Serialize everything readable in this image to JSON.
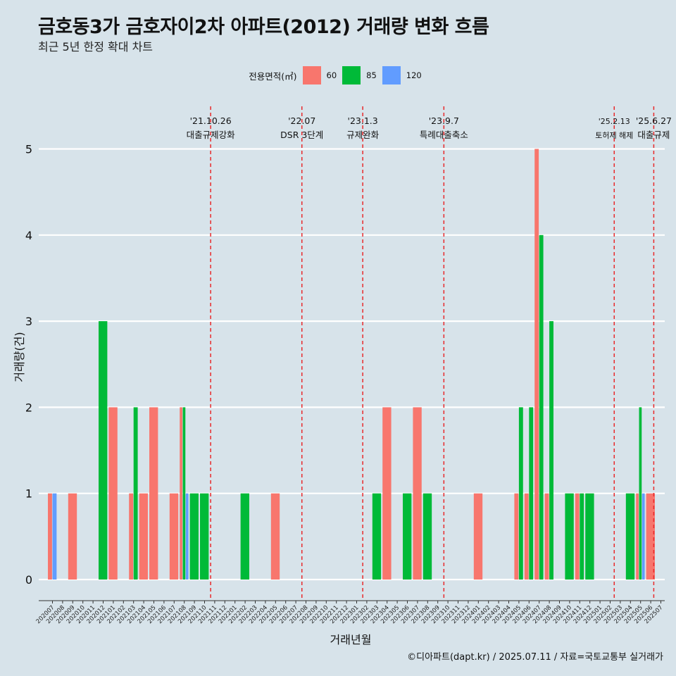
{
  "title": "금호동3가 금호자이2차 아파트(2012) 거래량 변화 흐름",
  "subtitle": "최근 5년 한정 확대 차트",
  "caption": "©디아파트(dapt.kr) / 2025.07.11 / 자료=국토교통부 실거래가",
  "colors": {
    "background": "#d7e3ea",
    "grid": "#ffffff",
    "event_line": "#e8292b",
    "s60": "#f8766d",
    "s85": "#00ba38",
    "s120": "#619cff"
  },
  "chart_data": {
    "type": "bar",
    "xlabel": "거래년월",
    "ylabel": "거래량(건)",
    "ylim": [
      0,
      5
    ],
    "y_ticks": [
      "0",
      "1",
      "2",
      "3",
      "4",
      "5"
    ],
    "legend": {
      "title": "전용면적(㎡)",
      "position": "top"
    },
    "categories": [
      "202007",
      "202008",
      "202009",
      "202010",
      "202011",
      "202012",
      "202101",
      "202102",
      "202103",
      "202104",
      "202105",
      "202106",
      "202107",
      "202108",
      "202109",
      "202110",
      "202111",
      "202112",
      "202201",
      "202202",
      "202203",
      "202204",
      "202205",
      "202206",
      "202207",
      "202208",
      "202209",
      "202210",
      "202211",
      "202212",
      "202301",
      "202302",
      "202303",
      "202304",
      "202305",
      "202306",
      "202307",
      "202308",
      "202309",
      "202310",
      "202311",
      "202312",
      "202401",
      "202402",
      "202403",
      "202404",
      "202405",
      "202406",
      "202407",
      "202408",
      "202409",
      "202410",
      "202411",
      "202412",
      "202501",
      "202502",
      "202503",
      "202504",
      "202505",
      "202506",
      "202507"
    ],
    "series": [
      {
        "name": "60",
        "color": "#f8766d",
        "values": [
          1,
          0,
          1,
          0,
          0,
          0,
          2,
          0,
          1,
          1,
          2,
          0,
          1,
          2,
          0,
          0,
          0,
          0,
          0,
          0,
          0,
          0,
          1,
          0,
          0,
          0,
          0,
          0,
          0,
          0,
          0,
          0,
          0,
          2,
          0,
          0,
          2,
          0,
          0,
          0,
          0,
          0,
          1,
          0,
          0,
          0,
          1,
          1,
          5,
          1,
          0,
          0,
          1,
          0,
          0,
          0,
          0,
          0,
          1,
          1,
          0
        ]
      },
      {
        "name": "85",
        "color": "#00ba38",
        "values": [
          0,
          0,
          0,
          0,
          0,
          3,
          0,
          0,
          2,
          0,
          0,
          0,
          0,
          2,
          1,
          1,
          0,
          0,
          0,
          1,
          0,
          0,
          0,
          0,
          0,
          0,
          0,
          0,
          0,
          0,
          0,
          0,
          1,
          0,
          0,
          1,
          0,
          1,
          0,
          0,
          0,
          0,
          0,
          0,
          0,
          0,
          2,
          2,
          4,
          3,
          0,
          1,
          1,
          1,
          0,
          0,
          0,
          1,
          2,
          0,
          0
        ]
      },
      {
        "name": "120",
        "color": "#619cff",
        "values": [
          1,
          0,
          0,
          0,
          0,
          0,
          0,
          0,
          0,
          0,
          0,
          0,
          0,
          1,
          0,
          0,
          0,
          0,
          0,
          0,
          0,
          0,
          0,
          0,
          0,
          0,
          0,
          0,
          0,
          0,
          0,
          0,
          0,
          0,
          0,
          0,
          0,
          0,
          0,
          0,
          0,
          0,
          0,
          0,
          0,
          0,
          0,
          0,
          0,
          0,
          0,
          0,
          0,
          0,
          0,
          0,
          0,
          0,
          1,
          0,
          0
        ]
      }
    ],
    "events": [
      {
        "position": 15.6,
        "date": "'21.10.26",
        "label": "대출규제강화",
        "size": "normal"
      },
      {
        "position": 24.6,
        "date": "'22.07",
        "label": "DSR 3단계",
        "size": "normal"
      },
      {
        "position": 30.6,
        "date": "'23.1.3",
        "label": "규제완화",
        "size": "normal"
      },
      {
        "position": 38.6,
        "date": "'23.9.7",
        "label": "특례대출축소",
        "size": "normal"
      },
      {
        "position": 55.4,
        "date": "'25.2.13",
        "label": "토허제 해제",
        "size": "small"
      },
      {
        "position": 59.3,
        "date": "'25.6.27",
        "label": "대출규제",
        "size": "normal"
      }
    ]
  }
}
